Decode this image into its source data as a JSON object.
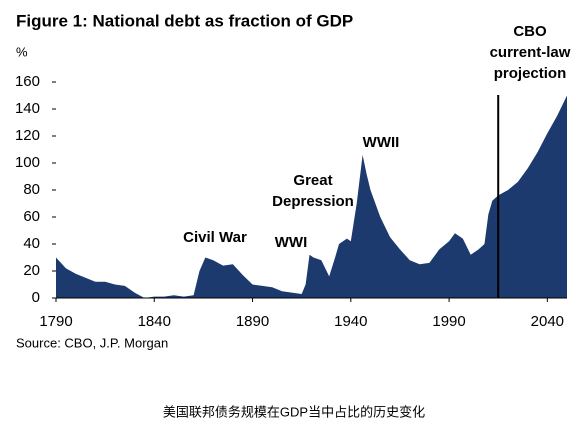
{
  "chart_data": {
    "type": "area",
    "title": "Figure 1: National debt as fraction of GDP",
    "y_label": "%",
    "source": "Source: CBO, J.P. Morgan",
    "caption": "美国联邦债务规模在GDP当中占比的历史变化",
    "annotations": [
      [
        "Civil War"
      ],
      [
        "WWI"
      ],
      [
        "Great",
        "Depression"
      ],
      [
        "WWII"
      ],
      [
        "CBO",
        "current-law",
        "projection"
      ]
    ],
    "projection_start": 2015,
    "color": "#1c3a6e",
    "x": [
      1790,
      1795,
      1800,
      1805,
      1810,
      1815,
      1820,
      1825,
      1830,
      1835,
      1840,
      1845,
      1850,
      1855,
      1860,
      1863,
      1866,
      1870,
      1875,
      1880,
      1885,
      1890,
      1895,
      1900,
      1905,
      1910,
      1915,
      1917,
      1919,
      1921,
      1925,
      1929,
      1932,
      1934,
      1938,
      1940,
      1943,
      1946,
      1948,
      1950,
      1955,
      1960,
      1965,
      1970,
      1975,
      1980,
      1985,
      1990,
      1993,
      1997,
      2001,
      2005,
      2008,
      2010,
      2012,
      2015,
      2020,
      2025,
      2030,
      2035,
      2040,
      2045,
      2050
    ],
    "values": [
      30,
      22,
      18,
      15,
      12,
      12,
      10,
      9,
      4,
      0,
      1,
      1,
      2,
      1,
      2,
      20,
      30,
      28,
      24,
      25,
      17,
      10,
      9,
      8,
      5,
      4,
      3,
      10,
      32,
      30,
      28,
      16,
      30,
      40,
      44,
      42,
      70,
      106,
      92,
      80,
      60,
      45,
      36,
      28,
      25,
      26,
      36,
      42,
      48,
      44,
      32,
      36,
      40,
      62,
      72,
      76,
      80,
      86,
      96,
      108,
      122,
      135,
      150
    ],
    "xlim": [
      1790,
      2050
    ],
    "ylim": [
      0,
      160
    ],
    "xticks": [
      1790,
      1840,
      1890,
      1940,
      1990,
      2040
    ],
    "yticks": [
      0,
      20,
      40,
      60,
      80,
      100,
      120,
      140,
      160
    ]
  }
}
